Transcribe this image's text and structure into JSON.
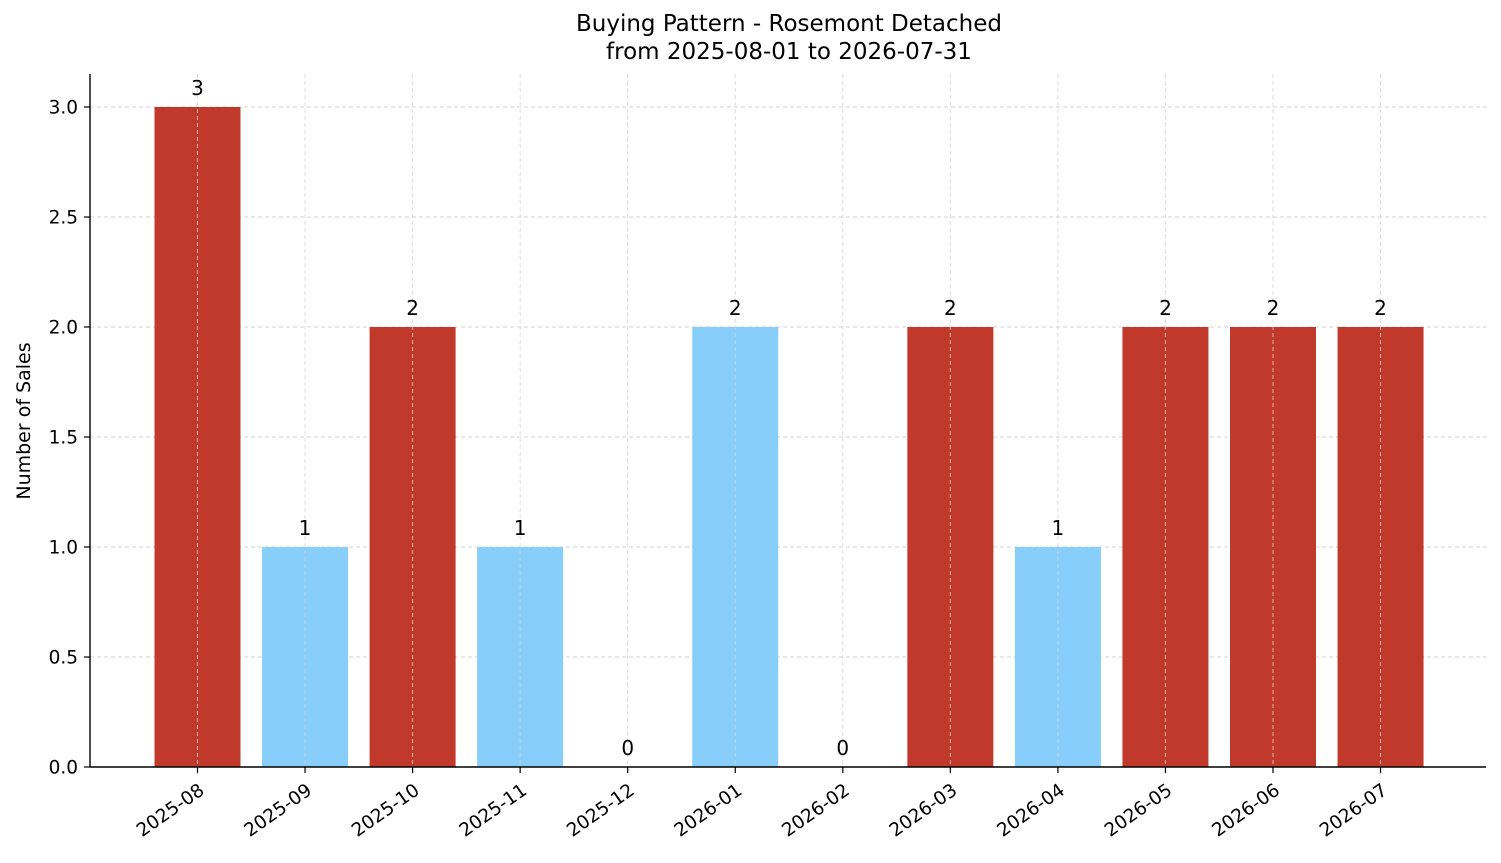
{
  "chart_data": {
    "type": "bar",
    "title": "Buying Pattern - Rosemont Detached",
    "subtitle": "from 2025-08-01 to 2026-07-31",
    "xlabel": "",
    "ylabel": "Number of Sales",
    "ylim": [
      0,
      3.15
    ],
    "yticks": [
      "0.0",
      "0.5",
      "1.0",
      "1.5",
      "2.0",
      "2.5",
      "3.0"
    ],
    "grid": true,
    "categories": [
      "2025-08",
      "2025-09",
      "2025-10",
      "2025-11",
      "2025-12",
      "2026-01",
      "2026-02",
      "2026-03",
      "2026-04",
      "2026-05",
      "2026-06",
      "2026-07"
    ],
    "values": [
      3,
      1,
      2,
      1,
      0,
      2,
      0,
      2,
      1,
      2,
      2,
      2
    ],
    "data_labels": [
      "3",
      "1",
      "2",
      "1",
      "0",
      "2",
      "0",
      "2",
      "1",
      "2",
      "2",
      "2"
    ],
    "colors": {
      "high": "#c0392b",
      "low": "#87cefa"
    },
    "bar_color_by_category": [
      "high",
      "low",
      "high",
      "low",
      "low",
      "low",
      "low",
      "high",
      "low",
      "high",
      "high",
      "high"
    ]
  }
}
